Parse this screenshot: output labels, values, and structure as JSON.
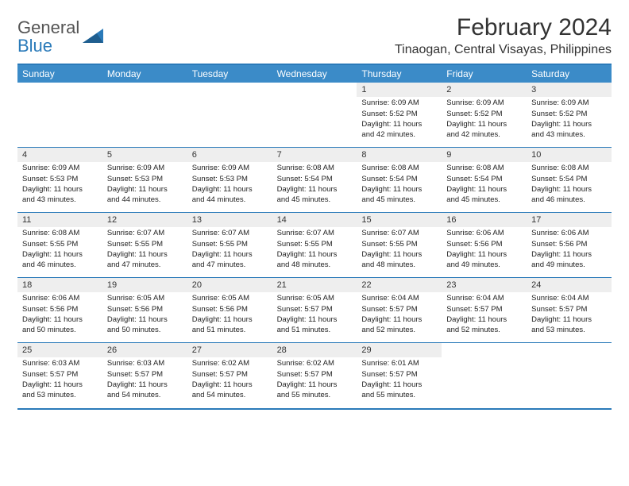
{
  "brand": {
    "word1": "General",
    "word2": "Blue",
    "shape_color": "#2a7ab9"
  },
  "title": "February 2024",
  "location": "Tinaogan, Central Visayas, Philippines",
  "header_bg": "#3b8bc8",
  "header_text_color": "#ffffff",
  "border_color": "#2a7ab9",
  "daynum_bg": "#eeeeee",
  "weekdays": [
    "Sunday",
    "Monday",
    "Tuesday",
    "Wednesday",
    "Thursday",
    "Friday",
    "Saturday"
  ],
  "weeks": [
    [
      null,
      null,
      null,
      null,
      {
        "day": "1",
        "sunrise": "Sunrise: 6:09 AM",
        "sunset": "Sunset: 5:52 PM",
        "daylight1": "Daylight: 11 hours",
        "daylight2": "and 42 minutes."
      },
      {
        "day": "2",
        "sunrise": "Sunrise: 6:09 AM",
        "sunset": "Sunset: 5:52 PM",
        "daylight1": "Daylight: 11 hours",
        "daylight2": "and 42 minutes."
      },
      {
        "day": "3",
        "sunrise": "Sunrise: 6:09 AM",
        "sunset": "Sunset: 5:52 PM",
        "daylight1": "Daylight: 11 hours",
        "daylight2": "and 43 minutes."
      }
    ],
    [
      {
        "day": "4",
        "sunrise": "Sunrise: 6:09 AM",
        "sunset": "Sunset: 5:53 PM",
        "daylight1": "Daylight: 11 hours",
        "daylight2": "and 43 minutes."
      },
      {
        "day": "5",
        "sunrise": "Sunrise: 6:09 AM",
        "sunset": "Sunset: 5:53 PM",
        "daylight1": "Daylight: 11 hours",
        "daylight2": "and 44 minutes."
      },
      {
        "day": "6",
        "sunrise": "Sunrise: 6:09 AM",
        "sunset": "Sunset: 5:53 PM",
        "daylight1": "Daylight: 11 hours",
        "daylight2": "and 44 minutes."
      },
      {
        "day": "7",
        "sunrise": "Sunrise: 6:08 AM",
        "sunset": "Sunset: 5:54 PM",
        "daylight1": "Daylight: 11 hours",
        "daylight2": "and 45 minutes."
      },
      {
        "day": "8",
        "sunrise": "Sunrise: 6:08 AM",
        "sunset": "Sunset: 5:54 PM",
        "daylight1": "Daylight: 11 hours",
        "daylight2": "and 45 minutes."
      },
      {
        "day": "9",
        "sunrise": "Sunrise: 6:08 AM",
        "sunset": "Sunset: 5:54 PM",
        "daylight1": "Daylight: 11 hours",
        "daylight2": "and 45 minutes."
      },
      {
        "day": "10",
        "sunrise": "Sunrise: 6:08 AM",
        "sunset": "Sunset: 5:54 PM",
        "daylight1": "Daylight: 11 hours",
        "daylight2": "and 46 minutes."
      }
    ],
    [
      {
        "day": "11",
        "sunrise": "Sunrise: 6:08 AM",
        "sunset": "Sunset: 5:55 PM",
        "daylight1": "Daylight: 11 hours",
        "daylight2": "and 46 minutes."
      },
      {
        "day": "12",
        "sunrise": "Sunrise: 6:07 AM",
        "sunset": "Sunset: 5:55 PM",
        "daylight1": "Daylight: 11 hours",
        "daylight2": "and 47 minutes."
      },
      {
        "day": "13",
        "sunrise": "Sunrise: 6:07 AM",
        "sunset": "Sunset: 5:55 PM",
        "daylight1": "Daylight: 11 hours",
        "daylight2": "and 47 minutes."
      },
      {
        "day": "14",
        "sunrise": "Sunrise: 6:07 AM",
        "sunset": "Sunset: 5:55 PM",
        "daylight1": "Daylight: 11 hours",
        "daylight2": "and 48 minutes."
      },
      {
        "day": "15",
        "sunrise": "Sunrise: 6:07 AM",
        "sunset": "Sunset: 5:55 PM",
        "daylight1": "Daylight: 11 hours",
        "daylight2": "and 48 minutes."
      },
      {
        "day": "16",
        "sunrise": "Sunrise: 6:06 AM",
        "sunset": "Sunset: 5:56 PM",
        "daylight1": "Daylight: 11 hours",
        "daylight2": "and 49 minutes."
      },
      {
        "day": "17",
        "sunrise": "Sunrise: 6:06 AM",
        "sunset": "Sunset: 5:56 PM",
        "daylight1": "Daylight: 11 hours",
        "daylight2": "and 49 minutes."
      }
    ],
    [
      {
        "day": "18",
        "sunrise": "Sunrise: 6:06 AM",
        "sunset": "Sunset: 5:56 PM",
        "daylight1": "Daylight: 11 hours",
        "daylight2": "and 50 minutes."
      },
      {
        "day": "19",
        "sunrise": "Sunrise: 6:05 AM",
        "sunset": "Sunset: 5:56 PM",
        "daylight1": "Daylight: 11 hours",
        "daylight2": "and 50 minutes."
      },
      {
        "day": "20",
        "sunrise": "Sunrise: 6:05 AM",
        "sunset": "Sunset: 5:56 PM",
        "daylight1": "Daylight: 11 hours",
        "daylight2": "and 51 minutes."
      },
      {
        "day": "21",
        "sunrise": "Sunrise: 6:05 AM",
        "sunset": "Sunset: 5:57 PM",
        "daylight1": "Daylight: 11 hours",
        "daylight2": "and 51 minutes."
      },
      {
        "day": "22",
        "sunrise": "Sunrise: 6:04 AM",
        "sunset": "Sunset: 5:57 PM",
        "daylight1": "Daylight: 11 hours",
        "daylight2": "and 52 minutes."
      },
      {
        "day": "23",
        "sunrise": "Sunrise: 6:04 AM",
        "sunset": "Sunset: 5:57 PM",
        "daylight1": "Daylight: 11 hours",
        "daylight2": "and 52 minutes."
      },
      {
        "day": "24",
        "sunrise": "Sunrise: 6:04 AM",
        "sunset": "Sunset: 5:57 PM",
        "daylight1": "Daylight: 11 hours",
        "daylight2": "and 53 minutes."
      }
    ],
    [
      {
        "day": "25",
        "sunrise": "Sunrise: 6:03 AM",
        "sunset": "Sunset: 5:57 PM",
        "daylight1": "Daylight: 11 hours",
        "daylight2": "and 53 minutes."
      },
      {
        "day": "26",
        "sunrise": "Sunrise: 6:03 AM",
        "sunset": "Sunset: 5:57 PM",
        "daylight1": "Daylight: 11 hours",
        "daylight2": "and 54 minutes."
      },
      {
        "day": "27",
        "sunrise": "Sunrise: 6:02 AM",
        "sunset": "Sunset: 5:57 PM",
        "daylight1": "Daylight: 11 hours",
        "daylight2": "and 54 minutes."
      },
      {
        "day": "28",
        "sunrise": "Sunrise: 6:02 AM",
        "sunset": "Sunset: 5:57 PM",
        "daylight1": "Daylight: 11 hours",
        "daylight2": "and 55 minutes."
      },
      {
        "day": "29",
        "sunrise": "Sunrise: 6:01 AM",
        "sunset": "Sunset: 5:57 PM",
        "daylight1": "Daylight: 11 hours",
        "daylight2": "and 55 minutes."
      },
      null,
      null
    ]
  ]
}
